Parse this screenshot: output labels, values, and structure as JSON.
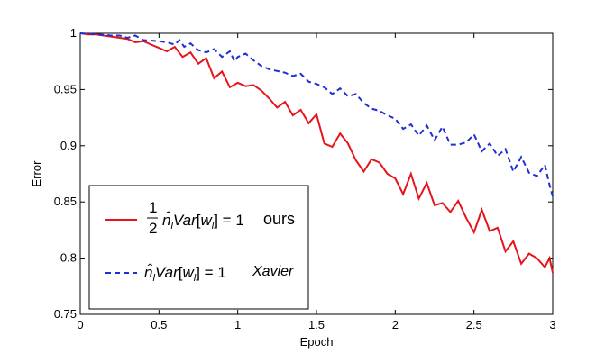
{
  "chart_data": {
    "type": "line",
    "title": "",
    "xlabel": "Epoch",
    "ylabel": "Error",
    "xlim": [
      0,
      3
    ],
    "ylim": [
      0.75,
      1
    ],
    "x_ticks": [
      "0",
      "0.5",
      "1",
      "1.5",
      "2",
      "2.5",
      "3"
    ],
    "y_ticks": [
      "0.75",
      "0.8",
      "0.85",
      "0.9",
      "0.95",
      "1"
    ],
    "grid": false,
    "legend_position": "bottom-left",
    "series": [
      {
        "name": "½ n̂ₗ Var[wₗ] = 1  ours",
        "color": "#e8141b",
        "style": "solid",
        "points": [
          [
            0,
            1.0
          ],
          [
            0.05,
            0.999
          ],
          [
            0.1,
            0.999
          ],
          [
            0.15,
            0.998
          ],
          [
            0.2,
            0.997
          ],
          [
            0.25,
            0.996
          ],
          [
            0.3,
            0.995
          ],
          [
            0.35,
            0.992
          ],
          [
            0.4,
            0.993
          ],
          [
            0.45,
            0.99
          ],
          [
            0.5,
            0.987
          ],
          [
            0.55,
            0.984
          ],
          [
            0.6,
            0.988
          ],
          [
            0.65,
            0.979
          ],
          [
            0.7,
            0.983
          ],
          [
            0.75,
            0.973
          ],
          [
            0.8,
            0.978
          ],
          [
            0.85,
            0.96
          ],
          [
            0.9,
            0.966
          ],
          [
            0.95,
            0.952
          ],
          [
            1.0,
            0.956
          ],
          [
            1.05,
            0.953
          ],
          [
            1.1,
            0.954
          ],
          [
            1.15,
            0.949
          ],
          [
            1.2,
            0.942
          ],
          [
            1.25,
            0.934
          ],
          [
            1.3,
            0.939
          ],
          [
            1.35,
            0.927
          ],
          [
            1.4,
            0.932
          ],
          [
            1.45,
            0.92
          ],
          [
            1.5,
            0.928
          ],
          [
            1.55,
            0.902
          ],
          [
            1.6,
            0.899
          ],
          [
            1.65,
            0.911
          ],
          [
            1.7,
            0.902
          ],
          [
            1.75,
            0.887
          ],
          [
            1.8,
            0.877
          ],
          [
            1.85,
            0.888
          ],
          [
            1.9,
            0.885
          ],
          [
            1.95,
            0.875
          ],
          [
            2.0,
            0.871
          ],
          [
            2.05,
            0.857
          ],
          [
            2.1,
            0.875
          ],
          [
            2.15,
            0.853
          ],
          [
            2.2,
            0.867
          ],
          [
            2.25,
            0.847
          ],
          [
            2.3,
            0.849
          ],
          [
            2.35,
            0.841
          ],
          [
            2.4,
            0.851
          ],
          [
            2.45,
            0.836
          ],
          [
            2.5,
            0.823
          ],
          [
            2.55,
            0.843
          ],
          [
            2.6,
            0.824
          ],
          [
            2.65,
            0.827
          ],
          [
            2.7,
            0.806
          ],
          [
            2.75,
            0.815
          ],
          [
            2.8,
            0.795
          ],
          [
            2.85,
            0.804
          ],
          [
            2.9,
            0.8
          ],
          [
            2.95,
            0.792
          ],
          [
            2.98,
            0.8
          ],
          [
            3.0,
            0.787
          ]
        ]
      },
      {
        "name": "n̂ₗ Var[wₗ] = 1  Xavier",
        "color": "#1f2fd6",
        "style": "dashed",
        "points": [
          [
            0,
            1.0
          ],
          [
            0.1,
            0.999
          ],
          [
            0.2,
            0.998
          ],
          [
            0.25,
            0.998
          ],
          [
            0.3,
            0.996
          ],
          [
            0.35,
            0.998
          ],
          [
            0.4,
            0.994
          ],
          [
            0.5,
            0.993
          ],
          [
            0.55,
            0.992
          ],
          [
            0.6,
            0.99
          ],
          [
            0.63,
            0.994
          ],
          [
            0.66,
            0.988
          ],
          [
            0.7,
            0.991
          ],
          [
            0.75,
            0.985
          ],
          [
            0.8,
            0.983
          ],
          [
            0.85,
            0.986
          ],
          [
            0.9,
            0.979
          ],
          [
            0.95,
            0.984
          ],
          [
            0.98,
            0.975
          ],
          [
            1.0,
            0.979
          ],
          [
            1.05,
            0.982
          ],
          [
            1.1,
            0.976
          ],
          [
            1.15,
            0.971
          ],
          [
            1.2,
            0.968
          ],
          [
            1.3,
            0.965
          ],
          [
            1.35,
            0.962
          ],
          [
            1.4,
            0.964
          ],
          [
            1.45,
            0.957
          ],
          [
            1.5,
            0.955
          ],
          [
            1.55,
            0.952
          ],
          [
            1.6,
            0.946
          ],
          [
            1.65,
            0.951
          ],
          [
            1.7,
            0.944
          ],
          [
            1.75,
            0.946
          ],
          [
            1.8,
            0.938
          ],
          [
            1.85,
            0.933
          ],
          [
            1.9,
            0.931
          ],
          [
            1.95,
            0.927
          ],
          [
            2.0,
            0.924
          ],
          [
            2.05,
            0.915
          ],
          [
            2.1,
            0.919
          ],
          [
            2.15,
            0.909
          ],
          [
            2.2,
            0.918
          ],
          [
            2.25,
            0.905
          ],
          [
            2.3,
            0.917
          ],
          [
            2.35,
            0.901
          ],
          [
            2.4,
            0.901
          ],
          [
            2.45,
            0.903
          ],
          [
            2.5,
            0.91
          ],
          [
            2.55,
            0.895
          ],
          [
            2.6,
            0.902
          ],
          [
            2.65,
            0.891
          ],
          [
            2.7,
            0.897
          ],
          [
            2.75,
            0.877
          ],
          [
            2.8,
            0.89
          ],
          [
            2.85,
            0.876
          ],
          [
            2.9,
            0.873
          ],
          [
            2.95,
            0.883
          ],
          [
            2.98,
            0.865
          ],
          [
            3.0,
            0.855
          ]
        ]
      }
    ]
  }
}
